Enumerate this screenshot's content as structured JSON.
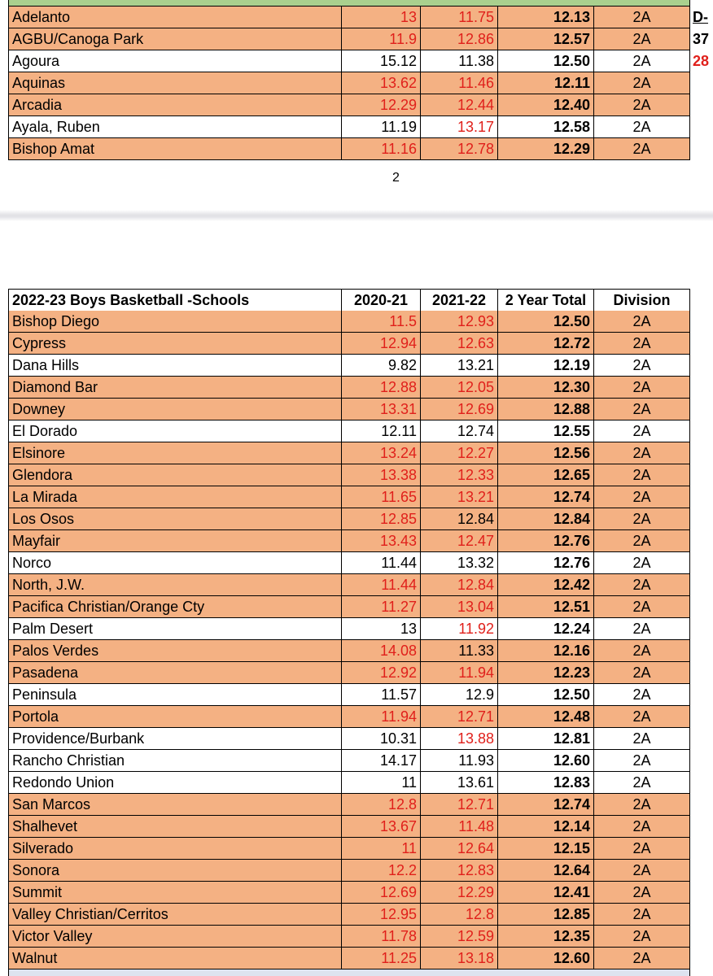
{
  "page1": {
    "rows": [
      {
        "name": "Adelanto",
        "c2020": "13",
        "c2021": "11.75",
        "total": "12.13",
        "division": "2A",
        "highlight": true,
        "red": [
          true,
          true
        ]
      },
      {
        "name": "AGBU/Canoga Park",
        "c2020": "11.9",
        "c2021": "12.86",
        "total": "12.57",
        "division": "2A",
        "highlight": true,
        "red": [
          true,
          true
        ]
      },
      {
        "name": "Agoura",
        "c2020": "15.12",
        "c2021": "11.38",
        "total": "12.50",
        "division": "2A",
        "highlight": false,
        "red": [
          false,
          false
        ]
      },
      {
        "name": "Aquinas",
        "c2020": "13.62",
        "c2021": "11.46",
        "total": "12.11",
        "division": "2A",
        "highlight": true,
        "red": [
          true,
          true
        ]
      },
      {
        "name": "Arcadia",
        "c2020": "12.29",
        "c2021": "12.44",
        "total": "12.40",
        "division": "2A",
        "highlight": true,
        "red": [
          true,
          true
        ]
      },
      {
        "name": "Ayala, Ruben",
        "c2020": "11.19",
        "c2021": "13.17",
        "total": "12.58",
        "division": "2A",
        "highlight": false,
        "red": [
          false,
          true
        ]
      },
      {
        "name": "Bishop Amat",
        "c2020": "11.16",
        "c2021": "12.78",
        "total": "12.29",
        "division": "2A",
        "highlight": true,
        "red": [
          true,
          true
        ]
      }
    ]
  },
  "side_notes": [
    {
      "text": "D-",
      "color": "#000000",
      "underline": true
    },
    {
      "text": "37",
      "color": "#000000",
      "underline": false
    },
    {
      "text": "28",
      "color": "#e0201b",
      "underline": false
    }
  ],
  "page_number": "2",
  "page2": {
    "header": {
      "name": "2022-23 Boys Basketball -Schools",
      "c2020": "2020-21",
      "c2021": "2021-22",
      "total": "2 Year Total",
      "division": "Division"
    },
    "rows": [
      {
        "name": "Bishop Diego",
        "c2020": "11.5",
        "c2021": "12.93",
        "total": "12.50",
        "division": "2A",
        "highlight": true,
        "red": [
          true,
          true
        ]
      },
      {
        "name": "Cypress",
        "c2020": "12.94",
        "c2021": "12.63",
        "total": "12.72",
        "division": "2A",
        "highlight": true,
        "red": [
          true,
          true
        ]
      },
      {
        "name": "Dana Hills",
        "c2020": "9.82",
        "c2021": "13.21",
        "total": "12.19",
        "division": "2A",
        "highlight": false,
        "red": [
          false,
          false
        ]
      },
      {
        "name": "Diamond Bar",
        "c2020": "12.88",
        "c2021": "12.05",
        "total": "12.30",
        "division": "2A",
        "highlight": true,
        "red": [
          true,
          true
        ]
      },
      {
        "name": "Downey",
        "c2020": "13.31",
        "c2021": "12.69",
        "total": "12.88",
        "division": "2A",
        "highlight": true,
        "red": [
          true,
          true
        ]
      },
      {
        "name": "El Dorado",
        "c2020": "12.11",
        "c2021": "12.74",
        "total": "12.55",
        "division": "2A",
        "highlight": false,
        "red": [
          false,
          false
        ]
      },
      {
        "name": "Elsinore",
        "c2020": "13.24",
        "c2021": "12.27",
        "total": "12.56",
        "division": "2A",
        "highlight": true,
        "red": [
          true,
          true
        ]
      },
      {
        "name": "Glendora",
        "c2020": "13.38",
        "c2021": "12.33",
        "total": "12.65",
        "division": "2A",
        "highlight": true,
        "red": [
          true,
          true
        ]
      },
      {
        "name": "La Mirada",
        "c2020": "11.65",
        "c2021": "13.21",
        "total": "12.74",
        "division": "2A",
        "highlight": true,
        "red": [
          true,
          true
        ]
      },
      {
        "name": "Los Osos",
        "c2020": "12.85",
        "c2021": "12.84",
        "total": "12.84",
        "division": "2A",
        "highlight": true,
        "red": [
          true,
          false
        ]
      },
      {
        "name": "Mayfair",
        "c2020": "13.43",
        "c2021": "12.47",
        "total": "12.76",
        "division": "2A",
        "highlight": true,
        "red": [
          true,
          true
        ]
      },
      {
        "name": "Norco",
        "c2020": "11.44",
        "c2021": "13.32",
        "total": "12.76",
        "division": "2A",
        "highlight": false,
        "red": [
          false,
          false
        ]
      },
      {
        "name": "North, J.W.",
        "c2020": "11.44",
        "c2021": "12.84",
        "total": "12.42",
        "division": "2A",
        "highlight": true,
        "red": [
          true,
          true
        ]
      },
      {
        "name": "Pacifica Christian/Orange Cty",
        "c2020": "11.27",
        "c2021": "13.04",
        "total": "12.51",
        "division": "2A",
        "highlight": true,
        "red": [
          true,
          true
        ]
      },
      {
        "name": "Palm Desert",
        "c2020": "13",
        "c2021": "11.92",
        "total": "12.24",
        "division": "2A",
        "highlight": false,
        "red": [
          false,
          true
        ]
      },
      {
        "name": "Palos Verdes",
        "c2020": "14.08",
        "c2021": "11.33",
        "total": "12.16",
        "division": "2A",
        "highlight": true,
        "red": [
          true,
          false
        ]
      },
      {
        "name": "Pasadena",
        "c2020": "12.92",
        "c2021": "11.94",
        "total": "12.23",
        "division": "2A",
        "highlight": true,
        "red": [
          true,
          true
        ]
      },
      {
        "name": "Peninsula",
        "c2020": "11.57",
        "c2021": "12.9",
        "total": "12.50",
        "division": "2A",
        "highlight": false,
        "red": [
          false,
          false
        ]
      },
      {
        "name": "Portola",
        "c2020": "11.94",
        "c2021": "12.71",
        "total": "12.48",
        "division": "2A",
        "highlight": true,
        "red": [
          true,
          true
        ]
      },
      {
        "name": "Providence/Burbank",
        "c2020": "10.31",
        "c2021": "13.88",
        "total": "12.81",
        "division": "2A",
        "highlight": false,
        "red": [
          false,
          true
        ]
      },
      {
        "name": "Rancho Christian",
        "c2020": "14.17",
        "c2021": "11.93",
        "total": "12.60",
        "division": "2A",
        "highlight": false,
        "red": [
          false,
          false
        ]
      },
      {
        "name": "Redondo Union",
        "c2020": "11",
        "c2021": "13.61",
        "total": "12.83",
        "division": "2A",
        "highlight": false,
        "red": [
          false,
          false
        ]
      },
      {
        "name": "San Marcos",
        "c2020": "12.8",
        "c2021": "12.71",
        "total": "12.74",
        "division": "2A",
        "highlight": true,
        "red": [
          true,
          true
        ]
      },
      {
        "name": "Shalhevet",
        "c2020": "13.67",
        "c2021": "11.48",
        "total": "12.14",
        "division": "2A",
        "highlight": true,
        "red": [
          true,
          true
        ]
      },
      {
        "name": "Silverado",
        "c2020": "11",
        "c2021": "12.64",
        "total": "12.15",
        "division": "2A",
        "highlight": true,
        "red": [
          true,
          true
        ]
      },
      {
        "name": "Sonora",
        "c2020": "12.2",
        "c2021": "12.83",
        "total": "12.64",
        "division": "2A",
        "highlight": true,
        "red": [
          true,
          true
        ]
      },
      {
        "name": "Summit",
        "c2020": "12.69",
        "c2021": "12.29",
        "total": "12.41",
        "division": "2A",
        "highlight": true,
        "red": [
          true,
          true
        ]
      },
      {
        "name": "Valley Christian/Cerritos",
        "c2020": "12.95",
        "c2021": "12.8",
        "total": "12.85",
        "division": "2A",
        "highlight": true,
        "red": [
          true,
          true
        ]
      },
      {
        "name": "Victor Valley",
        "c2020": "11.78",
        "c2021": "12.59",
        "total": "12.35",
        "division": "2A",
        "highlight": true,
        "red": [
          true,
          true
        ]
      },
      {
        "name": "Walnut",
        "c2020": "11.25",
        "c2021": "13.18",
        "total": "12.60",
        "division": "2A",
        "highlight": true,
        "red": [
          true,
          true
        ]
      }
    ]
  }
}
